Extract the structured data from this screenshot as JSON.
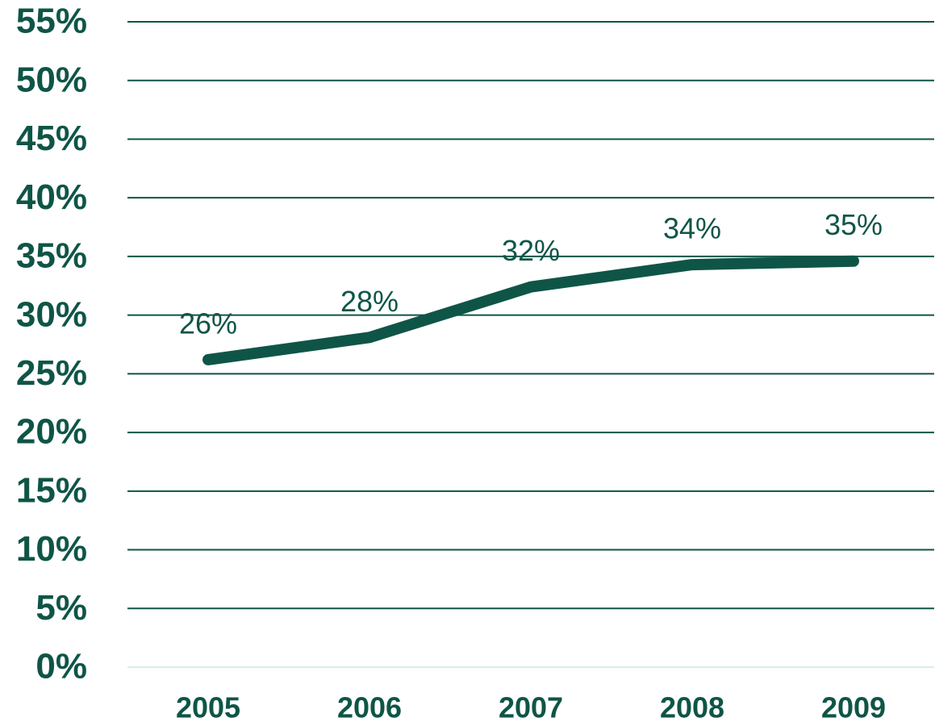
{
  "chart_data": {
    "type": "line",
    "categories": [
      "2005",
      "2006",
      "2007",
      "2008",
      "2009"
    ],
    "series": [
      {
        "color": "#0f5547",
        "values": [
          26.2,
          28.1,
          32.4,
          34.3,
          34.6
        ],
        "value_labels": [
          "26%",
          "28%",
          "32%",
          "34%",
          "35%"
        ]
      }
    ],
    "ylim": [
      0,
      55
    ],
    "yticks": [
      {
        "value": 0,
        "label": "0%"
      },
      {
        "value": 5,
        "label": "5%"
      },
      {
        "value": 10,
        "label": "10%"
      },
      {
        "value": 15,
        "label": "15%"
      },
      {
        "value": 20,
        "label": "20%"
      },
      {
        "value": 25,
        "label": "25%"
      },
      {
        "value": 30,
        "label": "30%"
      },
      {
        "value": 35,
        "label": "35%"
      },
      {
        "value": 40,
        "label": "40%"
      },
      {
        "value": 45,
        "label": "45%"
      },
      {
        "value": 50,
        "label": "50%"
      },
      {
        "value": 55,
        "label": "55%"
      }
    ],
    "grid": true
  }
}
